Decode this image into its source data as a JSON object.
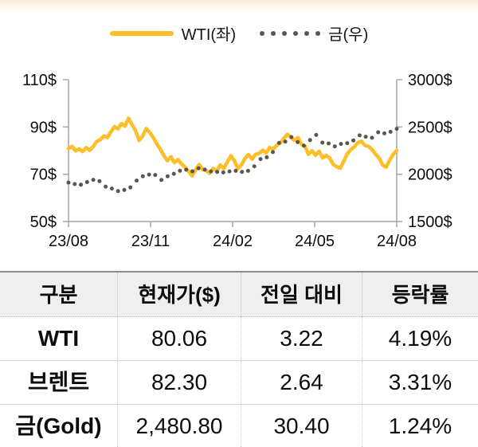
{
  "legend": {
    "items": [
      {
        "label": "WTI(좌)",
        "type": "line",
        "color": "#FDBE27"
      },
      {
        "label": "금(우)",
        "type": "dots",
        "color": "#5b554e"
      }
    ]
  },
  "chart_data": {
    "type": "line",
    "title": "",
    "axis_color": "#a6a6a6",
    "label_color": "#0d0d0d",
    "x_axis": {
      "labels": [
        "23/08",
        "23/11",
        "24/02",
        "24/05",
        "24/08"
      ],
      "tick_positions": [
        0,
        3,
        6,
        9,
        12
      ],
      "range": [
        0,
        12
      ]
    },
    "left_axis": {
      "labels": [
        "110$",
        "90$",
        "70$",
        "50$"
      ],
      "ticks": [
        110,
        90,
        70,
        50
      ],
      "range": [
        50,
        110
      ]
    },
    "right_axis": {
      "labels": [
        "3000$",
        "2500$",
        "2000$",
        "1500$"
      ],
      "ticks": [
        3000,
        2500,
        2000,
        1500
      ],
      "range": [
        1500,
        3000
      ]
    },
    "series": [
      {
        "name": "WTI(좌)",
        "axis": "left",
        "style": "line",
        "color": "#FDBE27",
        "values": [
          80.9,
          81.8,
          79.9,
          80.7,
          79.6,
          81.2,
          80.1,
          81.7,
          83.9,
          84.6,
          86.2,
          85.5,
          87.9,
          90.1,
          89.2,
          91.4,
          90.3,
          93.7,
          91.0,
          88.4,
          84.3,
          86.1,
          89.3,
          87.7,
          85.6,
          82.8,
          80.6,
          77.9,
          75.7,
          77.4,
          74.9,
          76.2,
          74.4,
          73.0,
          71.3,
          69.3,
          71.9,
          74.1,
          72.0,
          71.6,
          70.4,
          72.5,
          71.4,
          73.9,
          72.4,
          75.2,
          77.8,
          75.7,
          72.3,
          74.0,
          76.7,
          78.3,
          76.4,
          78.4,
          78.8,
          80.1,
          79.0,
          81.3,
          80.6,
          82.3,
          83.2,
          85.1,
          86.9,
          85.6,
          84.3,
          85.5,
          82.7,
          81.9,
          78.4,
          79.9,
          78.0,
          79.7,
          76.9,
          78.0,
          76.8,
          74.1,
          73.2,
          72.5,
          75.5,
          78.7,
          80.4,
          81.6,
          83.4,
          83.9,
          82.2,
          81.8,
          80.4,
          78.5,
          76.9,
          73.9,
          73.0,
          75.9,
          78.5,
          80.06
        ]
      },
      {
        "name": "금(우)",
        "axis": "right",
        "style": "dots",
        "color": "#5b554e",
        "values": [
          1912,
          1896,
          1889,
          1917,
          1941,
          1926,
          1869,
          1849,
          1822,
          1834,
          1861,
          1933,
          1979,
          1996,
          1992,
          1939,
          1979,
          2005,
          2037,
          2048,
          2031,
          2063,
          2049,
          2030,
          2025,
          2019,
          2030,
          2036,
          2025,
          2036,
          2084,
          2161,
          2179,
          2234,
          2331,
          2345,
          2393,
          2339,
          2302,
          2361,
          2416,
          2334,
          2326,
          2295,
          2321,
          2328,
          2357,
          2411,
          2397,
          2386,
          2444,
          2432,
          2449,
          2480.8
        ]
      }
    ]
  },
  "table": {
    "columns": [
      "구분",
      "현재가($)",
      "전일 대비",
      "등락률"
    ],
    "rows": [
      {
        "name": "WTI",
        "price": "80.06",
        "change": "3.22",
        "pct": "4.19%"
      },
      {
        "name": "브렌트",
        "price": "82.30",
        "change": "2.64",
        "pct": "3.31%"
      },
      {
        "name": "금(Gold)",
        "price": "2,480.80",
        "change": "30.40",
        "pct": "1.24%"
      }
    ]
  }
}
